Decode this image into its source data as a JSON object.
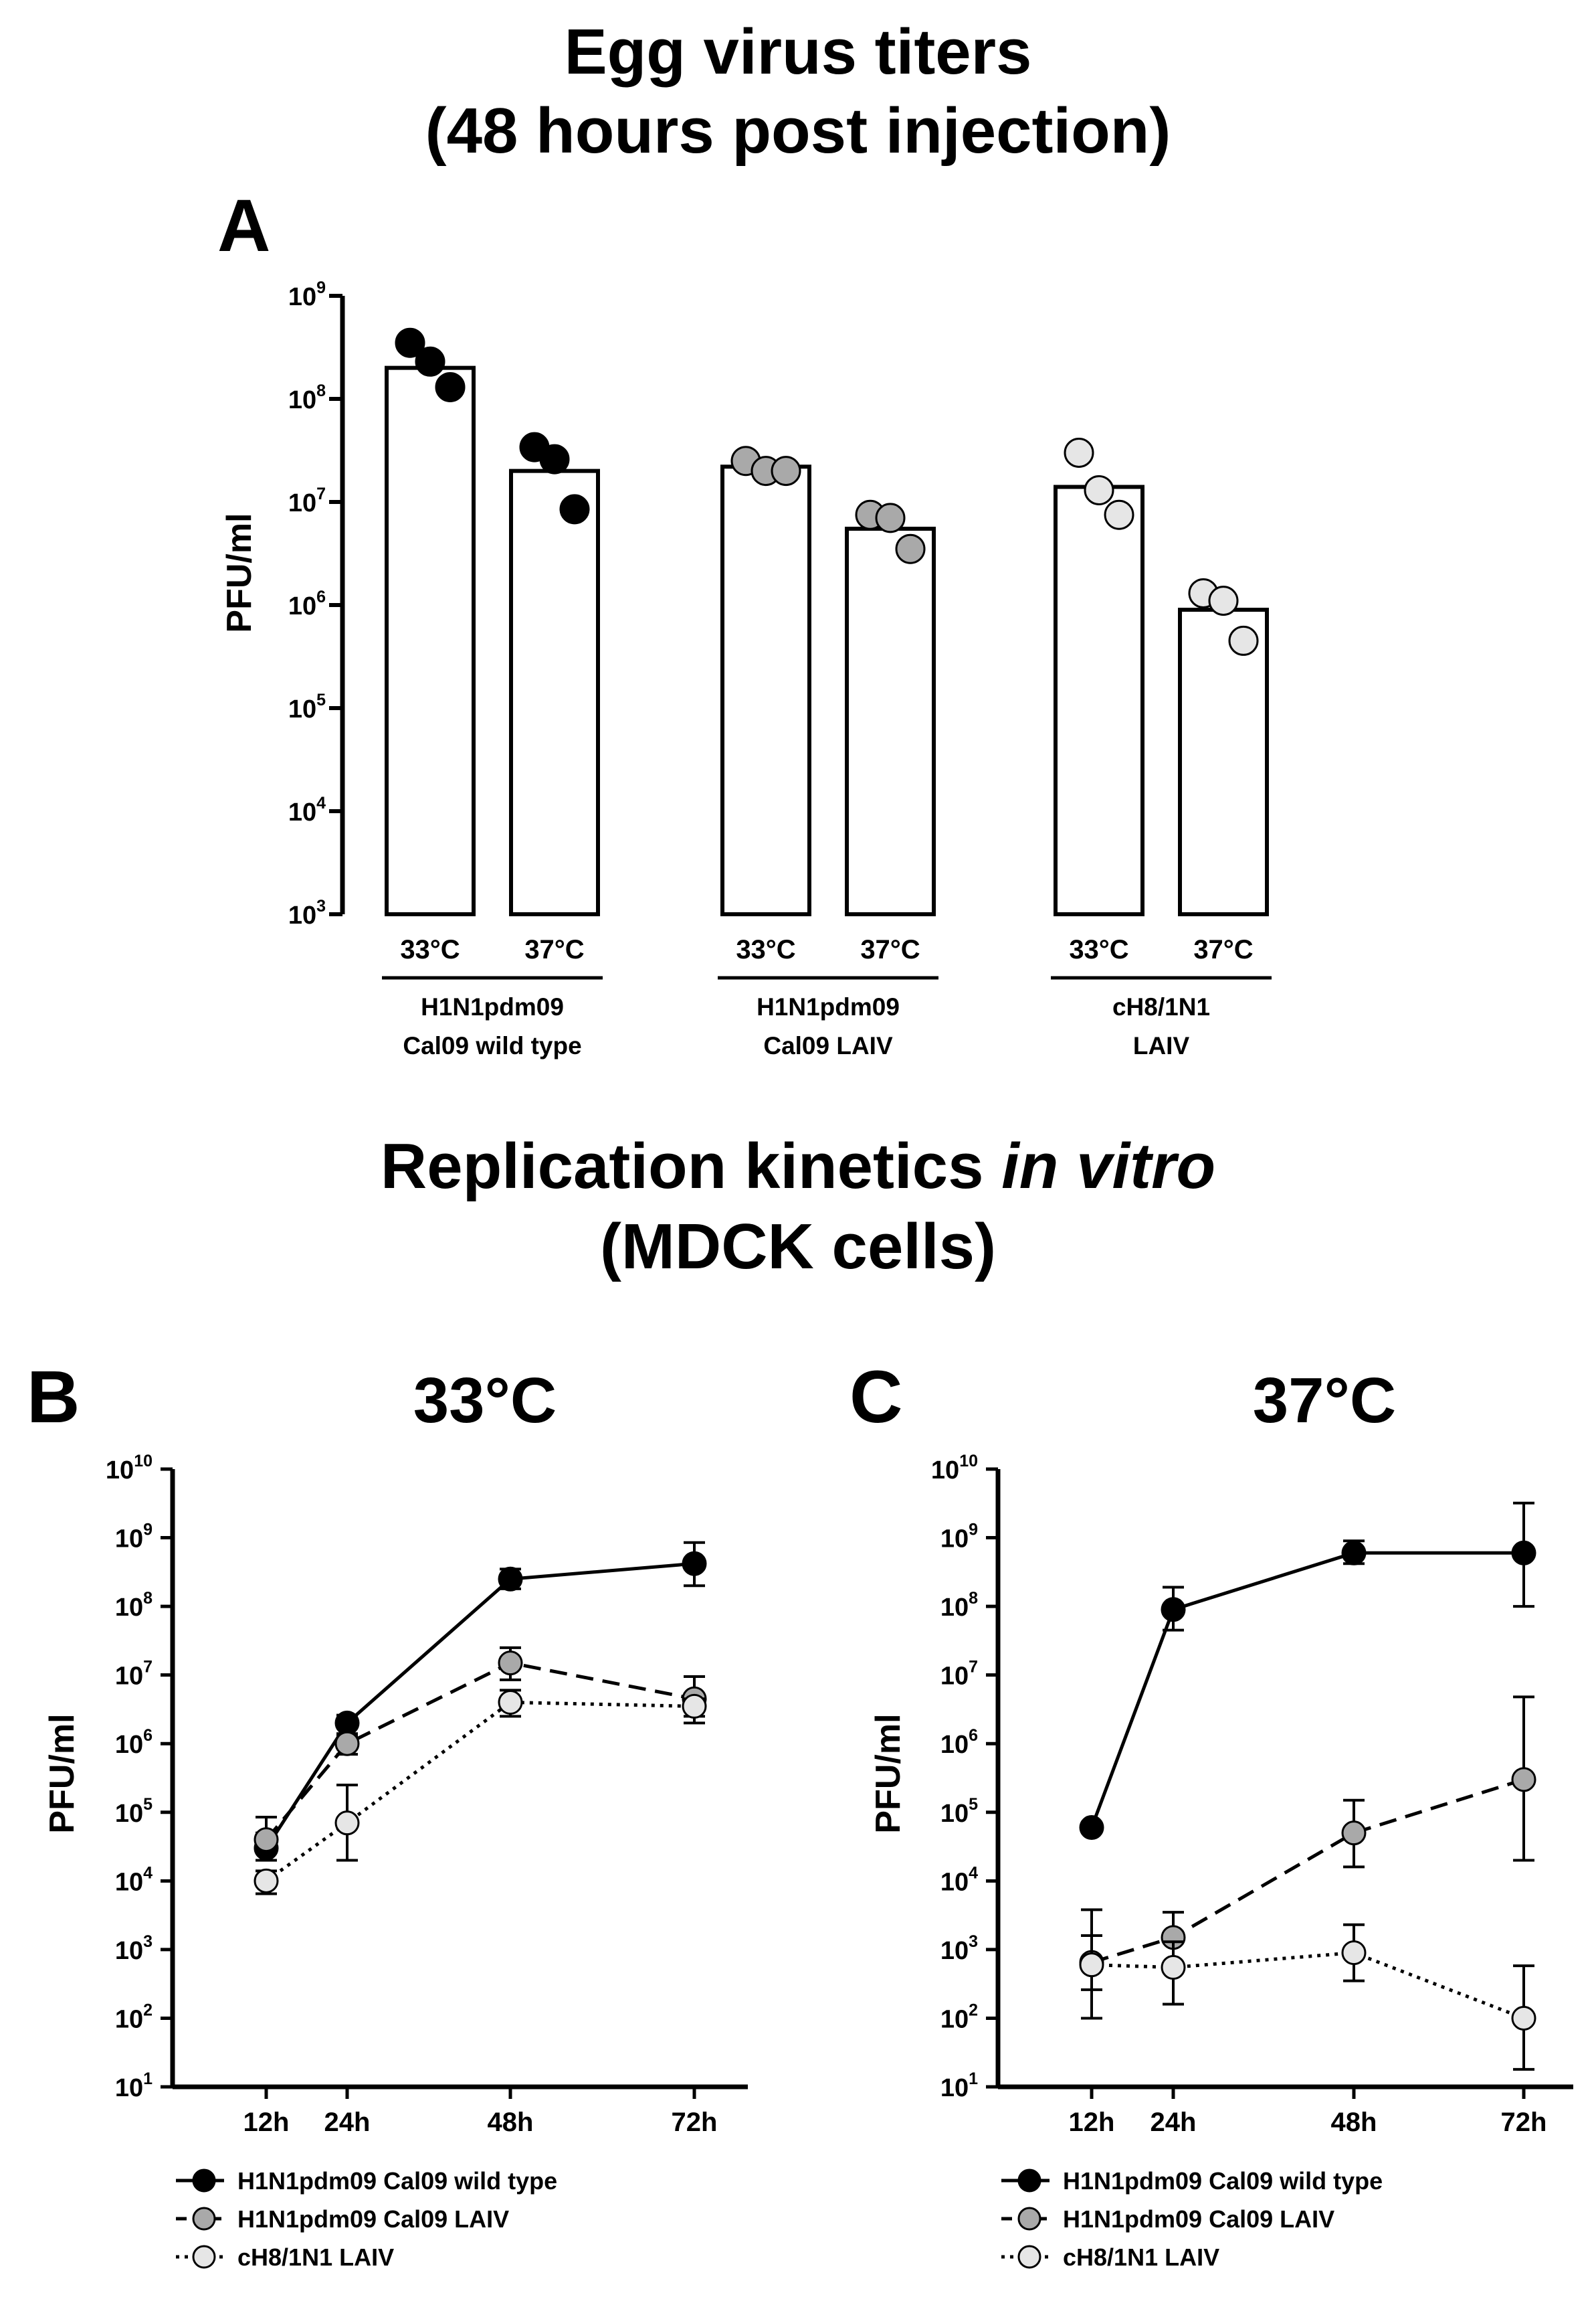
{
  "figure": {
    "title_top_line1": "Egg virus titers",
    "title_top_line2": "(48 hours post injection)",
    "title_mid_line1_plain": "Replication kinetics ",
    "title_mid_line1_italic": "in vitro",
    "title_mid_line2": "(MDCK cells)"
  },
  "chart_data": [
    {
      "panel": "A",
      "type": "bar",
      "title": "Egg virus titers (48 hours post injection)",
      "ylabel": "PFU/ml",
      "yscale": "log10",
      "ylim": [
        1000,
        1000000000
      ],
      "ytick_base": "10",
      "ytick_exponents": [
        "9",
        "8",
        "7",
        "6",
        "5",
        "4",
        "3"
      ],
      "groups": [
        {
          "label_line1": "H1N1pdm09",
          "label_line2": "Cal09 wild type",
          "dot_color": "#000000",
          "bars": [
            {
              "temp": "33°C",
              "value": 200000000,
              "points": [
                350000000,
                230000000,
                130000000
              ]
            },
            {
              "temp": "37°C",
              "value": 20000000,
              "points": [
                34000000,
                26000000,
                8500000
              ]
            }
          ]
        },
        {
          "label_line1": "H1N1pdm09",
          "label_line2": "Cal09 LAIV",
          "dot_color": "#a9a9a9",
          "bars": [
            {
              "temp": "33°C",
              "value": 22000000,
              "points": [
                25000000,
                20000000,
                20000000
              ]
            },
            {
              "temp": "37°C",
              "value": 5500000,
              "points": [
                7500000,
                7000000,
                3500000
              ]
            }
          ]
        },
        {
          "label_line1": "cH8/1N1",
          "label_line2": "LAIV",
          "dot_color": "#e6e6e6",
          "bars": [
            {
              "temp": "33°C",
              "value": 14000000,
              "points": [
                30000000,
                13000000,
                7500000
              ]
            },
            {
              "temp": "37°C",
              "value": 900000,
              "points": [
                1300000,
                1100000,
                450000
              ]
            }
          ]
        }
      ]
    },
    {
      "panel": "B",
      "type": "line",
      "title": "33°C",
      "ylabel": "PFU/ml",
      "yscale": "log10",
      "ylim": [
        10,
        10000000000
      ],
      "ytick_base": "10",
      "ytick_exponents": [
        "10",
        "9",
        "8",
        "7",
        "6",
        "5",
        "4",
        "3",
        "2",
        "1"
      ],
      "x": [
        12,
        24,
        48,
        72
      ],
      "xtick_labels": [
        "12h",
        "24h",
        "48h",
        "72h"
      ],
      "series": [
        {
          "name": "H1N1pdm09 Cal09 wild type",
          "fill": "#000000",
          "dash": "solid",
          "values": [
            30000,
            2000000,
            250000000,
            420000000
          ],
          "err_low": [
            20000,
            1300000,
            180000000,
            200000000
          ],
          "err_high": [
            50000,
            2600000,
            350000000,
            850000000
          ]
        },
        {
          "name": "H1N1pdm09 Cal09 LAIV",
          "fill": "#a9a9a9",
          "dash": "dashed",
          "values": [
            40000,
            1000000,
            15000000,
            4500000
          ],
          "err_low": [
            30000,
            700000,
            8500000,
            2000000
          ],
          "err_high": [
            85000,
            1400000,
            25000000,
            9500000
          ]
        },
        {
          "name": "cH8/1N1 LAIV",
          "fill": "#e6e6e6",
          "dash": "dotted",
          "values": [
            10000,
            70000,
            4000000,
            3500000
          ],
          "err_low": [
            6500,
            20000,
            2500000,
            2500000
          ],
          "err_high": [
            14000,
            250000,
            6000000,
            4500000
          ]
        }
      ]
    },
    {
      "panel": "C",
      "type": "line",
      "title": "37°C",
      "ylabel": "PFU/ml",
      "yscale": "log10",
      "ylim": [
        10,
        10000000000
      ],
      "ytick_base": "10",
      "ytick_exponents": [
        "10",
        "9",
        "8",
        "7",
        "6",
        "5",
        "4",
        "3",
        "2",
        "1"
      ],
      "x": [
        12,
        24,
        48,
        72
      ],
      "xtick_labels": [
        "12h",
        "24h",
        "48h",
        "72h"
      ],
      "series": [
        {
          "name": "H1N1pdm09 Cal09 wild type",
          "fill": "#000000",
          "dash": "solid",
          "values": [
            60000,
            90000000,
            600000000,
            600000000
          ],
          "err_low": [
            60000,
            45000000,
            420000000,
            100000000
          ],
          "err_high": [
            60000,
            190000000,
            900000000,
            3200000000
          ]
        },
        {
          "name": "H1N1pdm09 Cal09 LAIV",
          "fill": "#a9a9a9",
          "dash": "dashed",
          "values": [
            650,
            1500,
            50000,
            300000
          ],
          "err_low": [
            100,
            650,
            16000,
            20000
          ],
          "err_high": [
            3800,
            3500,
            150000,
            4800000
          ]
        },
        {
          "name": "cH8/1N1 LAIV",
          "fill": "#e6e6e6",
          "dash": "dotted",
          "values": [
            600,
            550,
            900,
            100
          ],
          "err_low": [
            260,
            160,
            350,
            18
          ],
          "err_high": [
            1600,
            1300,
            2300,
            580
          ]
        }
      ]
    }
  ]
}
